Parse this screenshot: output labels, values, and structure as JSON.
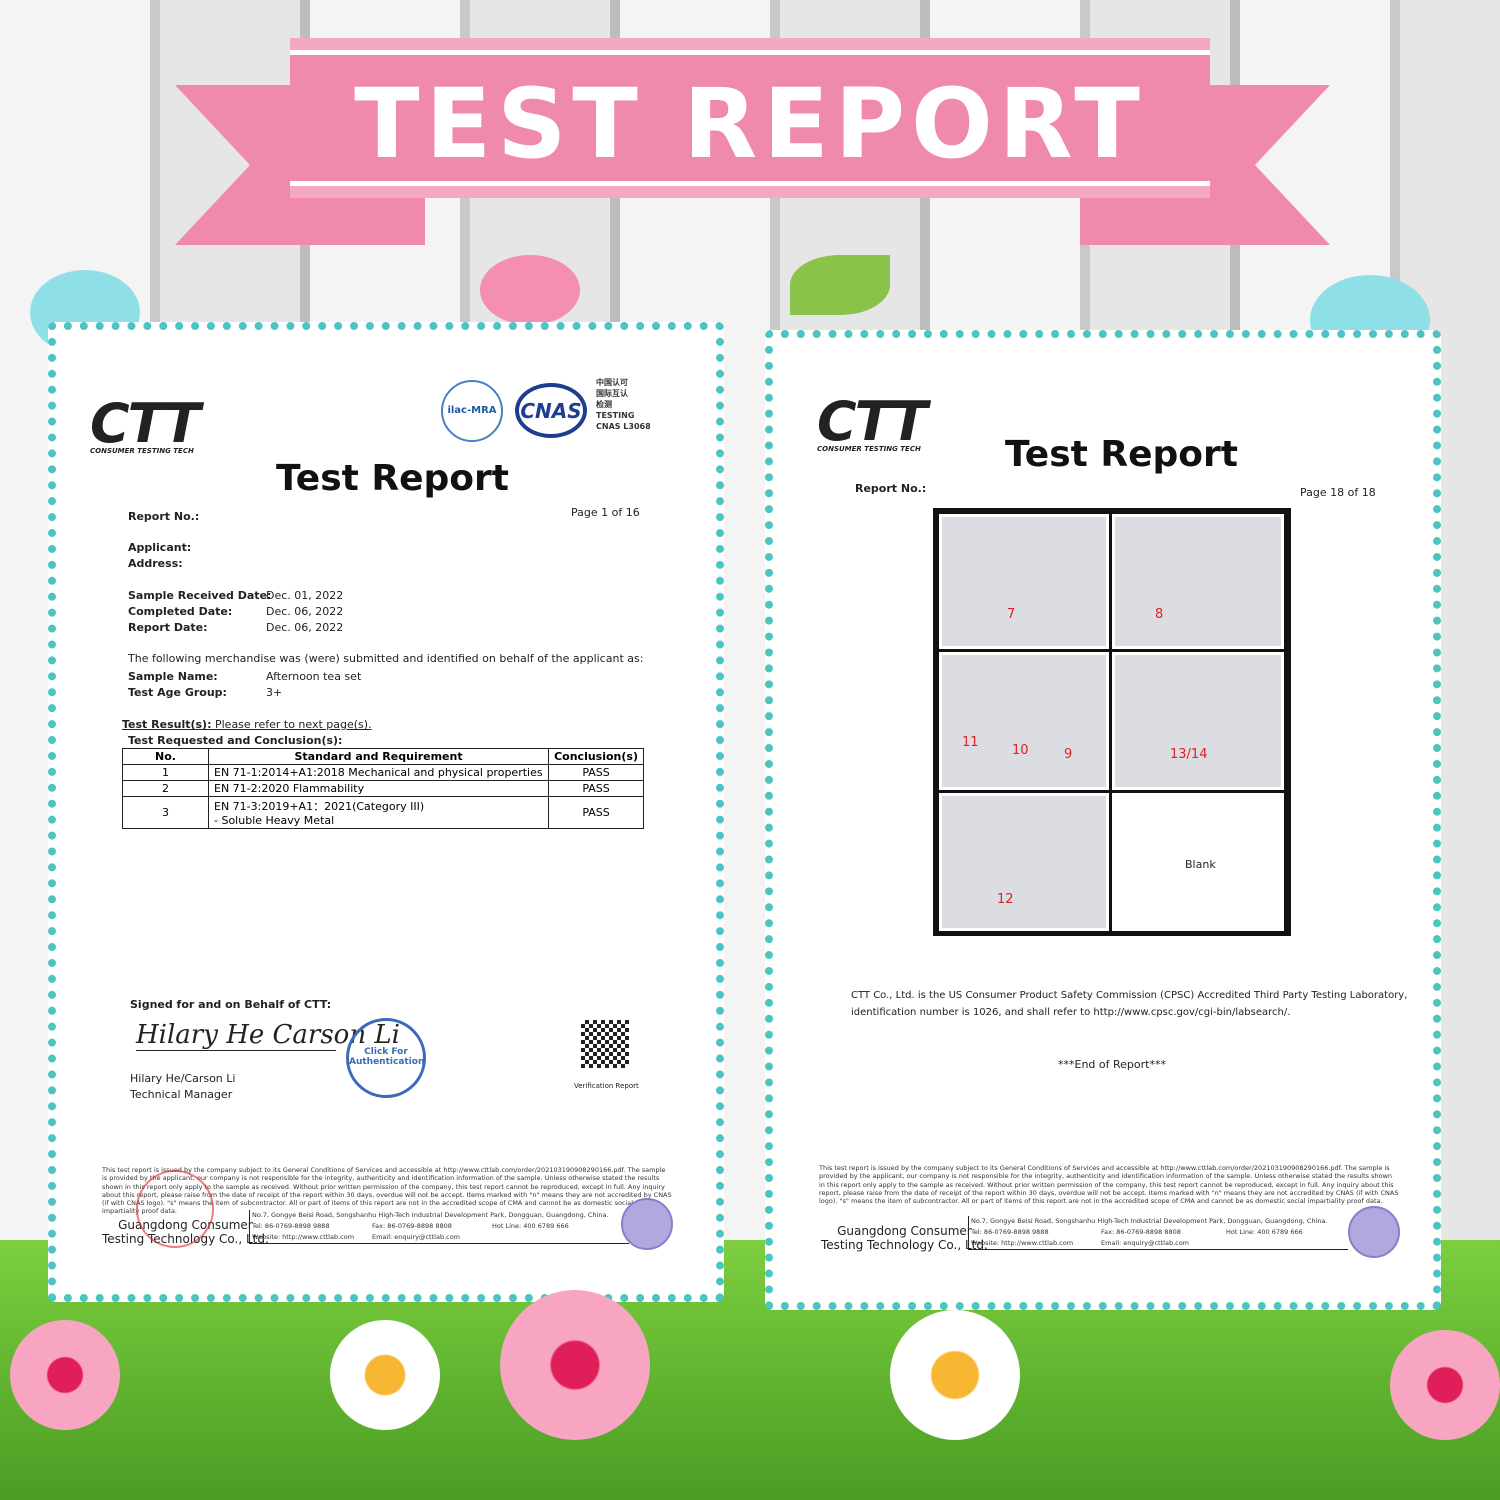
{
  "banner": {
    "title": "TEST REPORT"
  },
  "left_report": {
    "logo": "CTT",
    "logo_sub": "CONSUMER TESTING TECH",
    "accreditation": {
      "ilac": "ilac-MRA",
      "cnas": "CNAS",
      "cn_lines": [
        "中国认可",
        "国际互认",
        "检测"
      ],
      "testing": "TESTING",
      "cnas_no": "CNAS L3068"
    },
    "title": "Test Report",
    "report_no_label": "Report No.:",
    "page": "Page 1 of 16",
    "applicant_label": "Applicant:",
    "address_label": "Address:",
    "sample_received_label": "Sample Received Date:",
    "sample_received": "Dec. 01, 2022",
    "completed_label": "Completed Date:",
    "completed": "Dec. 06, 2022",
    "report_date_label": "Report Date:",
    "report_date": "Dec. 06, 2022",
    "intro": "The following merchandise was (were) submitted and identified on behalf of the applicant as:",
    "sample_name_label": "Sample Name:",
    "sample_name": "Afternoon tea set",
    "age_group_label": "Test Age Group:",
    "age_group": "3+",
    "test_result_label": "Test Result(s):",
    "test_result": "Please refer to next page(s).",
    "requested_label": "Test Requested and Conclusion(s):",
    "table": {
      "headers": [
        "No.",
        "Standard and Requirement",
        "Conclusion(s)"
      ],
      "rows": [
        [
          "1",
          "EN 71-1:2014+A1:2018 Mechanical and physical properties",
          "PASS"
        ],
        [
          "2",
          "EN 71-2:2020 Flammability",
          "PASS"
        ],
        [
          "3",
          "EN 71-3:2019+A1：2021(Category III)",
          "PASS"
        ]
      ],
      "row3_line2": "- Soluble Heavy Metal"
    },
    "signed_label": "Signed for and on Behalf of CTT:",
    "signature": "Hilary He  Carson Li",
    "signer": "Hilary He/Carson Li",
    "signer_title": "Technical Manager",
    "stamp": "Click For Authentication",
    "verification": "Verification Report"
  },
  "right_report": {
    "logo": "CTT",
    "logo_sub": "CONSUMER TESTING TECH",
    "title": "Test Report",
    "report_no_label": "Report No.:",
    "page": "Page 18 of 18",
    "photo_labels": [
      "7",
      "8",
      "11",
      "10",
      "9",
      "13/14",
      "12"
    ],
    "blank": "Blank",
    "cpsc_line1": "CTT Co., Ltd. is the US Consumer Product Safety Commission (CPSC) Accredited Third Party Testing Laboratory,",
    "cpsc_line2": "identification number is 1026, and shall refer to http://www.cpsc.gov/cgi-bin/labsearch/.",
    "end": "***End of Report***"
  },
  "footer": {
    "disclaimer": "This test report is issued by the company subject to its General Conditions of Services and accessible at http://www.cttlab.com/order/202103190908290166.pdf. The sample is provided by the applicant, our company is not responsible for the integrity, authenticity and identification information of the sample. Unless otherwise stated the results shown in this report only apply to the sample as received. Without prior written permission of the company, this test report cannot be reproduced, except in full. Any inquiry about this report, please raise from the date of receipt of the report within 30 days, overdue will not be accept. Items marked with \"n\" means they are not accredited by CNAS (if with CNAS logo). \"s\" means the item of subcontractor. All or part of items of this report are not in the accredited scope of CMA and cannot be as domestic social impartiality proof data.",
    "company_line1": "Guangdong Consumer",
    "company_line2": "Testing Technology Co., Ltd.",
    "address": "No.7, Gongye Beisi Road, Songshanhu High-Tech Industrial Development Park, Dongguan, Guangdong, China.",
    "tel": "Tel: 86-0769-8898 9888",
    "fax": "Fax: 86-0769-8898 8808",
    "hotline": "Hot Line: 400 6789 666",
    "website": "Website: http://www.cttlab.com",
    "email": "Email: enquiry@cttlab.com"
  },
  "colors": {
    "banner": "#f08aab",
    "border": "#4dc4c2",
    "pass_arrow": "#dd2222"
  }
}
